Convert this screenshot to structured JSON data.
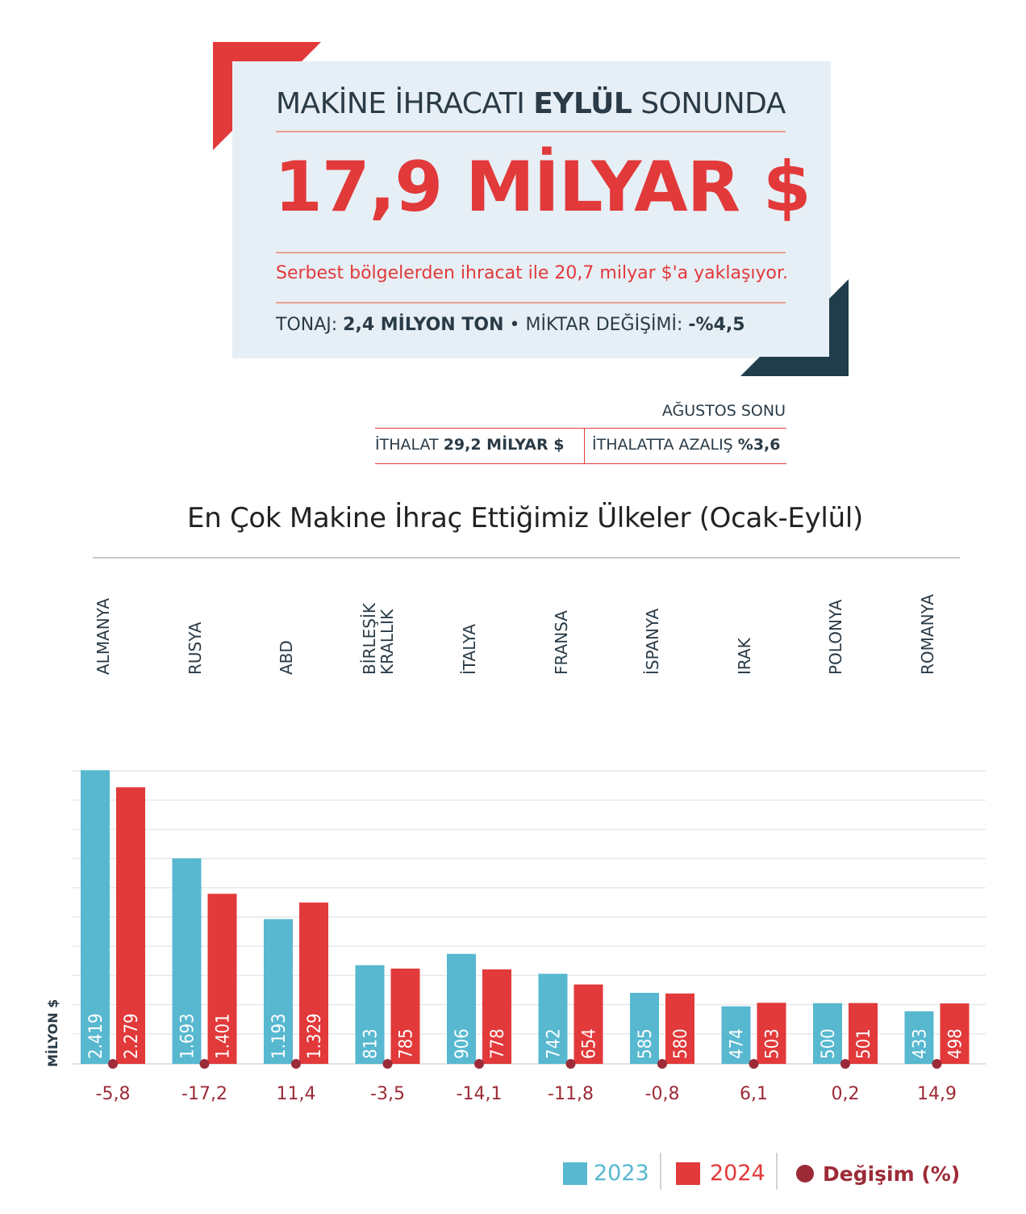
{
  "header": {
    "headline_pre": "MAKİNE İHRACATI ",
    "headline_bold": "EYLÜL",
    "headline_post": " SONUNDA",
    "big_number": "17,9 MİLYAR $",
    "subline": "Serbest bölgelerden ihracat ile 20,7 milyar $'a yaklaşıyor.",
    "ton_label": "TONAJ: ",
    "ton_value": "2,4 MİLYON TON",
    "bullet": " • ",
    "change_label": "MİKTAR DEĞİŞİMİ: ",
    "change_value": "-%4,5"
  },
  "august": {
    "label": "AĞUSTOS SONU",
    "import_label": "İTHALAT ",
    "import_value": "29,2 MİLYAR $",
    "decline_label": "İTHALATTA AZALIŞ ",
    "decline_value": "%3,6"
  },
  "colors": {
    "accent_red": "#e2393a",
    "accent_blue": "#57b8d0",
    "dark_teal": "#1f3d4a",
    "change_dot": "#9c2b37"
  },
  "chart_data": {
    "type": "bar",
    "title": "En Çok Makine İhraç Ettiğimiz Ülkeler (Ocak-Eylül)",
    "ylabel": "MİLYON $",
    "categories": [
      "ALMANYA",
      "RUSYA",
      "ABD",
      "BİRLEŞİK\nKRALLIK",
      "İTALYA",
      "FRANSA",
      "İSPANYA",
      "IRAK",
      "POLONYA",
      "ROMANYA"
    ],
    "series": [
      {
        "name": "2023",
        "color": "#57b8d0",
        "values": [
          2419,
          1693,
          1193,
          813,
          906,
          742,
          585,
          474,
          500,
          433
        ],
        "labels": [
          "2.419",
          "1.693",
          "1.193",
          "813",
          "906",
          "742",
          "585",
          "474",
          "500",
          "433"
        ]
      },
      {
        "name": "2024",
        "color": "#e2393a",
        "values": [
          2279,
          1401,
          1329,
          785,
          778,
          654,
          580,
          503,
          501,
          498
        ],
        "labels": [
          "2.279",
          "1.401",
          "1.329",
          "785",
          "778",
          "654",
          "580",
          "503",
          "501",
          "498"
        ]
      }
    ],
    "change": {
      "name": "Değişim (%)",
      "values": [
        -5.8,
        -17.2,
        11.4,
        -3.5,
        -14.1,
        -11.8,
        -0.8,
        6.1,
        0.2,
        14.9
      ],
      "labels": [
        "-5,8",
        "-17,2",
        "11,4",
        "-3,5",
        "-14,1",
        "-11,8",
        "-0,8",
        "6,1",
        "0,2",
        "14,9"
      ]
    },
    "ylim": [
      0,
      2500
    ],
    "grid": true,
    "legend_position": "bottom-right"
  }
}
